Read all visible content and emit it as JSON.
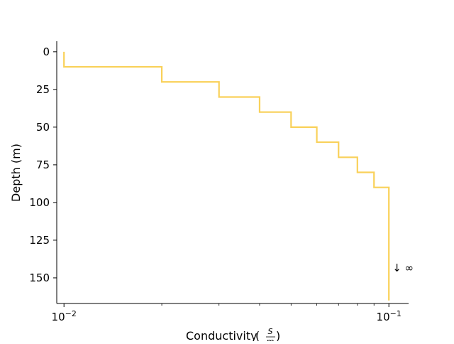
{
  "chart_data": {
    "type": "line",
    "style": "step",
    "xlabel": "Conductivity",
    "xlabel_units": {
      "numerator": "S",
      "denominator": "m"
    },
    "ylabel": "Depth (m)",
    "xscale": "log",
    "xlim": [
      0.0095,
      0.115
    ],
    "ylim": [
      167,
      -7
    ],
    "y_inverted": true,
    "x_ticks": [
      {
        "value": 0.01,
        "base": "10",
        "exponent": "−2"
      },
      {
        "value": 0.1,
        "base": "10",
        "exponent": "−1"
      }
    ],
    "y_ticks": [
      {
        "value": 0,
        "label": "0"
      },
      {
        "value": 25,
        "label": "25"
      },
      {
        "value": 50,
        "label": "50"
      },
      {
        "value": 75,
        "label": "75"
      },
      {
        "value": 100,
        "label": "100"
      },
      {
        "value": 125,
        "label": "125"
      },
      {
        "value": 150,
        "label": "150"
      }
    ],
    "x_minor_ticks": [
      0.02,
      0.03,
      0.04,
      0.05,
      0.06,
      0.07,
      0.08,
      0.09
    ],
    "layers": [
      {
        "top": 0,
        "bottom": 10,
        "conductivity": 0.01
      },
      {
        "top": 10,
        "bottom": 20,
        "conductivity": 0.02
      },
      {
        "top": 20,
        "bottom": 30,
        "conductivity": 0.03
      },
      {
        "top": 30,
        "bottom": 40,
        "conductivity": 0.04
      },
      {
        "top": 40,
        "bottom": 50,
        "conductivity": 0.05
      },
      {
        "top": 50,
        "bottom": 60,
        "conductivity": 0.06
      },
      {
        "top": 60,
        "bottom": 70,
        "conductivity": 0.07
      },
      {
        "top": 70,
        "bottom": 80,
        "conductivity": 0.08
      },
      {
        "top": 80,
        "bottom": 90,
        "conductivity": 0.09
      },
      {
        "top": 90,
        "bottom": 165,
        "conductivity": 0.1
      }
    ],
    "line_color": "#f9d15a",
    "annotation": {
      "text": "↓ ∞",
      "x": 0.1,
      "y": 143
    },
    "grid": false,
    "spines": [
      "left",
      "bottom"
    ]
  }
}
